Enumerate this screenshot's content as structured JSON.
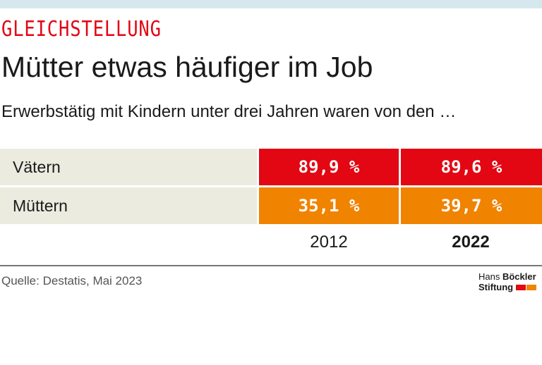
{
  "kicker": "GLEICHSTELLUNG",
  "title": "Mütter etwas häufiger im Job",
  "subtitle": "Erwerbstätig mit Kindern unter drei Jahren waren von den …",
  "source": "Quelle: Destatis, Mai 2023",
  "logo": {
    "line1a": "Hans ",
    "line1b": "Böckler",
    "line2": "Stiftung"
  },
  "colors": {
    "vaeter": "#e30613",
    "muetter": "#f08300",
    "label_bg": "#ecebe0"
  },
  "chart_data": {
    "type": "table",
    "columns": [
      "2012",
      "2022"
    ],
    "rows": [
      {
        "label": "Vätern",
        "values": [
          "89,9 %",
          "89,6 %"
        ]
      },
      {
        "label": "Müttern",
        "values": [
          "35,1 %",
          "39,7 %"
        ]
      }
    ]
  }
}
